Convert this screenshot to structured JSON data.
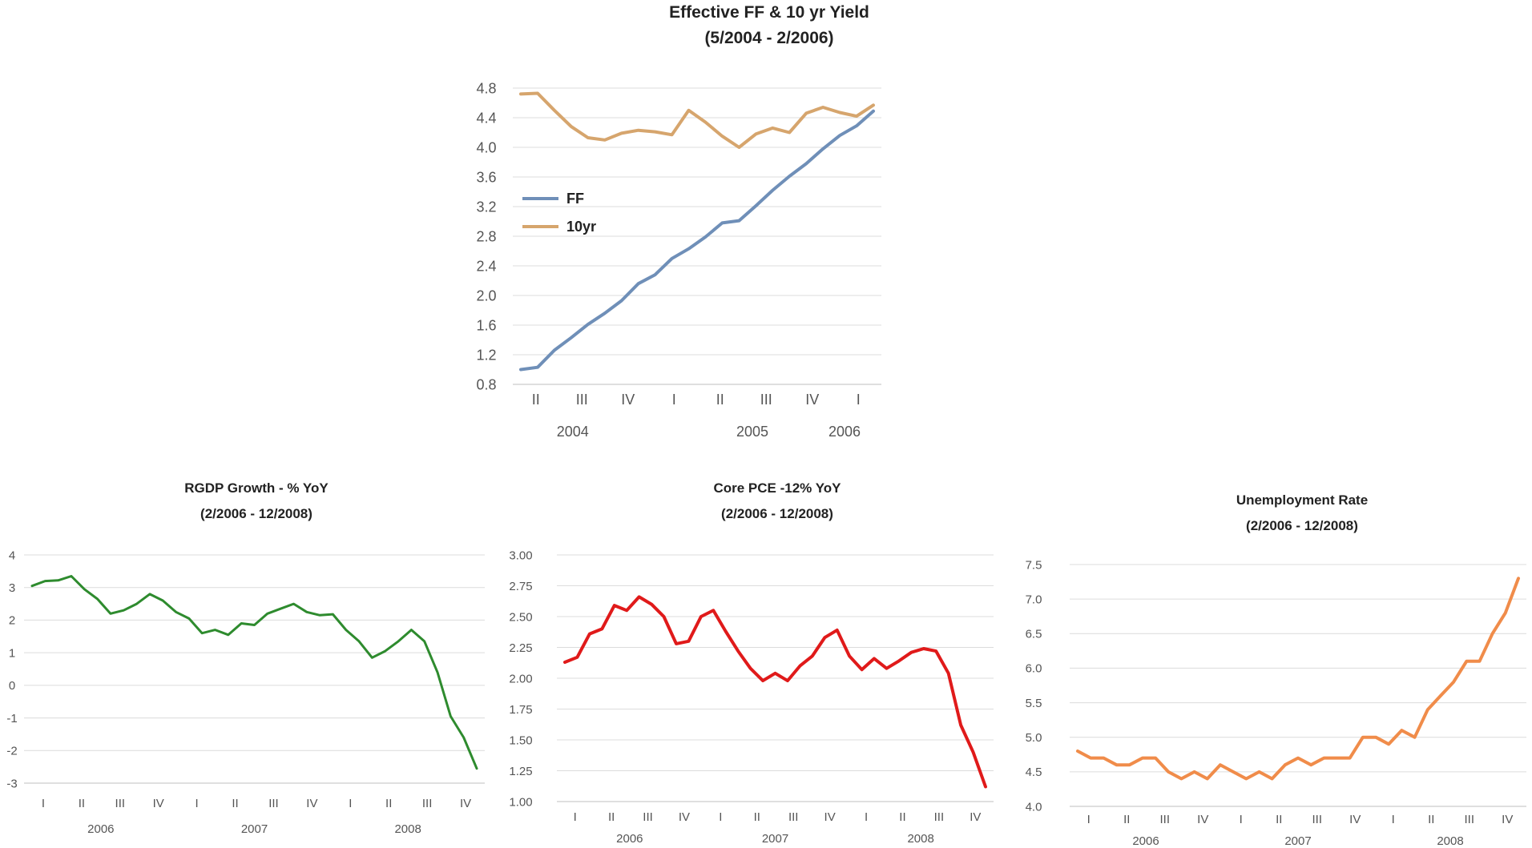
{
  "chart_data": [
    {
      "type": "line",
      "title": "Effective FF & 10 yr Yield",
      "subtitle": "(5/2004 - 2/2006)",
      "ylim": [
        0.8,
        4.8
      ],
      "yticks": [
        "4.8",
        "4.4",
        "4.0",
        "3.6",
        "3.2",
        "2.8",
        "2.4",
        "2.0",
        "1.6",
        "1.2",
        "0.8"
      ],
      "quarter_labels": [
        "II",
        "III",
        "IV",
        "I",
        "II",
        "III",
        "IV",
        "I"
      ],
      "year_labels": [
        "2004",
        "2005",
        "2006"
      ],
      "legend": "left",
      "series": [
        {
          "name": "FF",
          "color": "#6f8fb8",
          "values": [
            1.0,
            1.03,
            1.26,
            1.43,
            1.61,
            1.76,
            1.93,
            2.16,
            2.28,
            2.5,
            2.63,
            2.79,
            2.98,
            3.01,
            3.21,
            3.42,
            3.61,
            3.78,
            3.98,
            4.16,
            4.29,
            4.49
          ]
        },
        {
          "name": "10yr",
          "color": "#d6a56d",
          "values": [
            4.72,
            4.73,
            4.5,
            4.28,
            4.13,
            4.1,
            4.19,
            4.23,
            4.21,
            4.17,
            4.5,
            4.34,
            4.15,
            4.0,
            4.18,
            4.26,
            4.2,
            4.46,
            4.54,
            4.47,
            4.42,
            4.57
          ]
        }
      ]
    },
    {
      "type": "line",
      "title": "RGDP Growth - % YoY",
      "subtitle": "(2/2006 - 12/2008)",
      "ylim": [
        -3,
        4
      ],
      "yticks": [
        "4",
        "3",
        "2",
        "1",
        "0",
        "-1",
        "-2",
        "-3"
      ],
      "quarter_labels": [
        "I",
        "II",
        "III",
        "IV",
        "I",
        "II",
        "III",
        "IV",
        "I",
        "II",
        "III",
        "IV"
      ],
      "year_labels": [
        "2006",
        "2007",
        "2008"
      ],
      "series": [
        {
          "name": "RGDP Growth",
          "color": "#2e8b2e",
          "values": [
            3.05,
            3.2,
            3.22,
            3.35,
            2.95,
            2.65,
            2.2,
            2.3,
            2.5,
            2.8,
            2.6,
            2.25,
            2.05,
            1.6,
            1.7,
            1.55,
            1.9,
            1.85,
            2.2,
            2.35,
            2.5,
            2.25,
            2.15,
            2.18,
            1.7,
            1.35,
            0.85,
            1.05,
            1.35,
            1.7,
            1.35,
            0.4,
            -0.95,
            -1.6,
            -2.55
          ]
        }
      ]
    },
    {
      "type": "line",
      "title": "Core PCE -12% YoY",
      "subtitle": "(2/2006 - 12/2008)",
      "ylim": [
        1.0,
        3.0
      ],
      "yticks": [
        "3.00",
        "2.75",
        "2.50",
        "2.25",
        "2.00",
        "1.75",
        "1.50",
        "1.25",
        "1.00"
      ],
      "quarter_labels": [
        "I",
        "II",
        "III",
        "IV",
        "I",
        "II",
        "III",
        "IV",
        "I",
        "II",
        "III",
        "IV"
      ],
      "year_labels": [
        "2006",
        "2007",
        "2008"
      ],
      "series": [
        {
          "name": "Core PCE",
          "color": "#e01a1a",
          "values": [
            2.13,
            2.17,
            2.36,
            2.4,
            2.59,
            2.55,
            2.66,
            2.6,
            2.5,
            2.28,
            2.3,
            2.5,
            2.55,
            2.38,
            2.22,
            2.08,
            1.98,
            2.04,
            1.98,
            2.1,
            2.18,
            2.33,
            2.39,
            2.18,
            2.07,
            2.16,
            2.08,
            2.14,
            2.21,
            2.24,
            2.22,
            2.04,
            1.62,
            1.4,
            1.12
          ]
        }
      ]
    },
    {
      "type": "line",
      "title": "Unemployment Rate",
      "subtitle": "(2/2006 - 12/2008)",
      "ylim": [
        4.0,
        7.5
      ],
      "yticks": [
        "7.5",
        "7.0",
        "6.5",
        "6.0",
        "5.5",
        "5.0",
        "4.5",
        "4.0"
      ],
      "quarter_labels": [
        "I",
        "II",
        "III",
        "IV",
        "I",
        "II",
        "III",
        "IV",
        "I",
        "II",
        "III",
        "IV"
      ],
      "year_labels": [
        "2006",
        "2007",
        "2008"
      ],
      "series": [
        {
          "name": "Unemployment Rate",
          "color": "#f08c4a",
          "values": [
            4.8,
            4.7,
            4.7,
            4.6,
            4.6,
            4.7,
            4.7,
            4.5,
            4.4,
            4.5,
            4.4,
            4.6,
            4.5,
            4.4,
            4.5,
            4.4,
            4.6,
            4.7,
            4.6,
            4.7,
            4.7,
            4.7,
            5.0,
            5.0,
            4.9,
            5.1,
            5.0,
            5.4,
            5.6,
            5.8,
            6.1,
            6.1,
            6.5,
            6.8,
            7.3
          ]
        }
      ]
    }
  ]
}
